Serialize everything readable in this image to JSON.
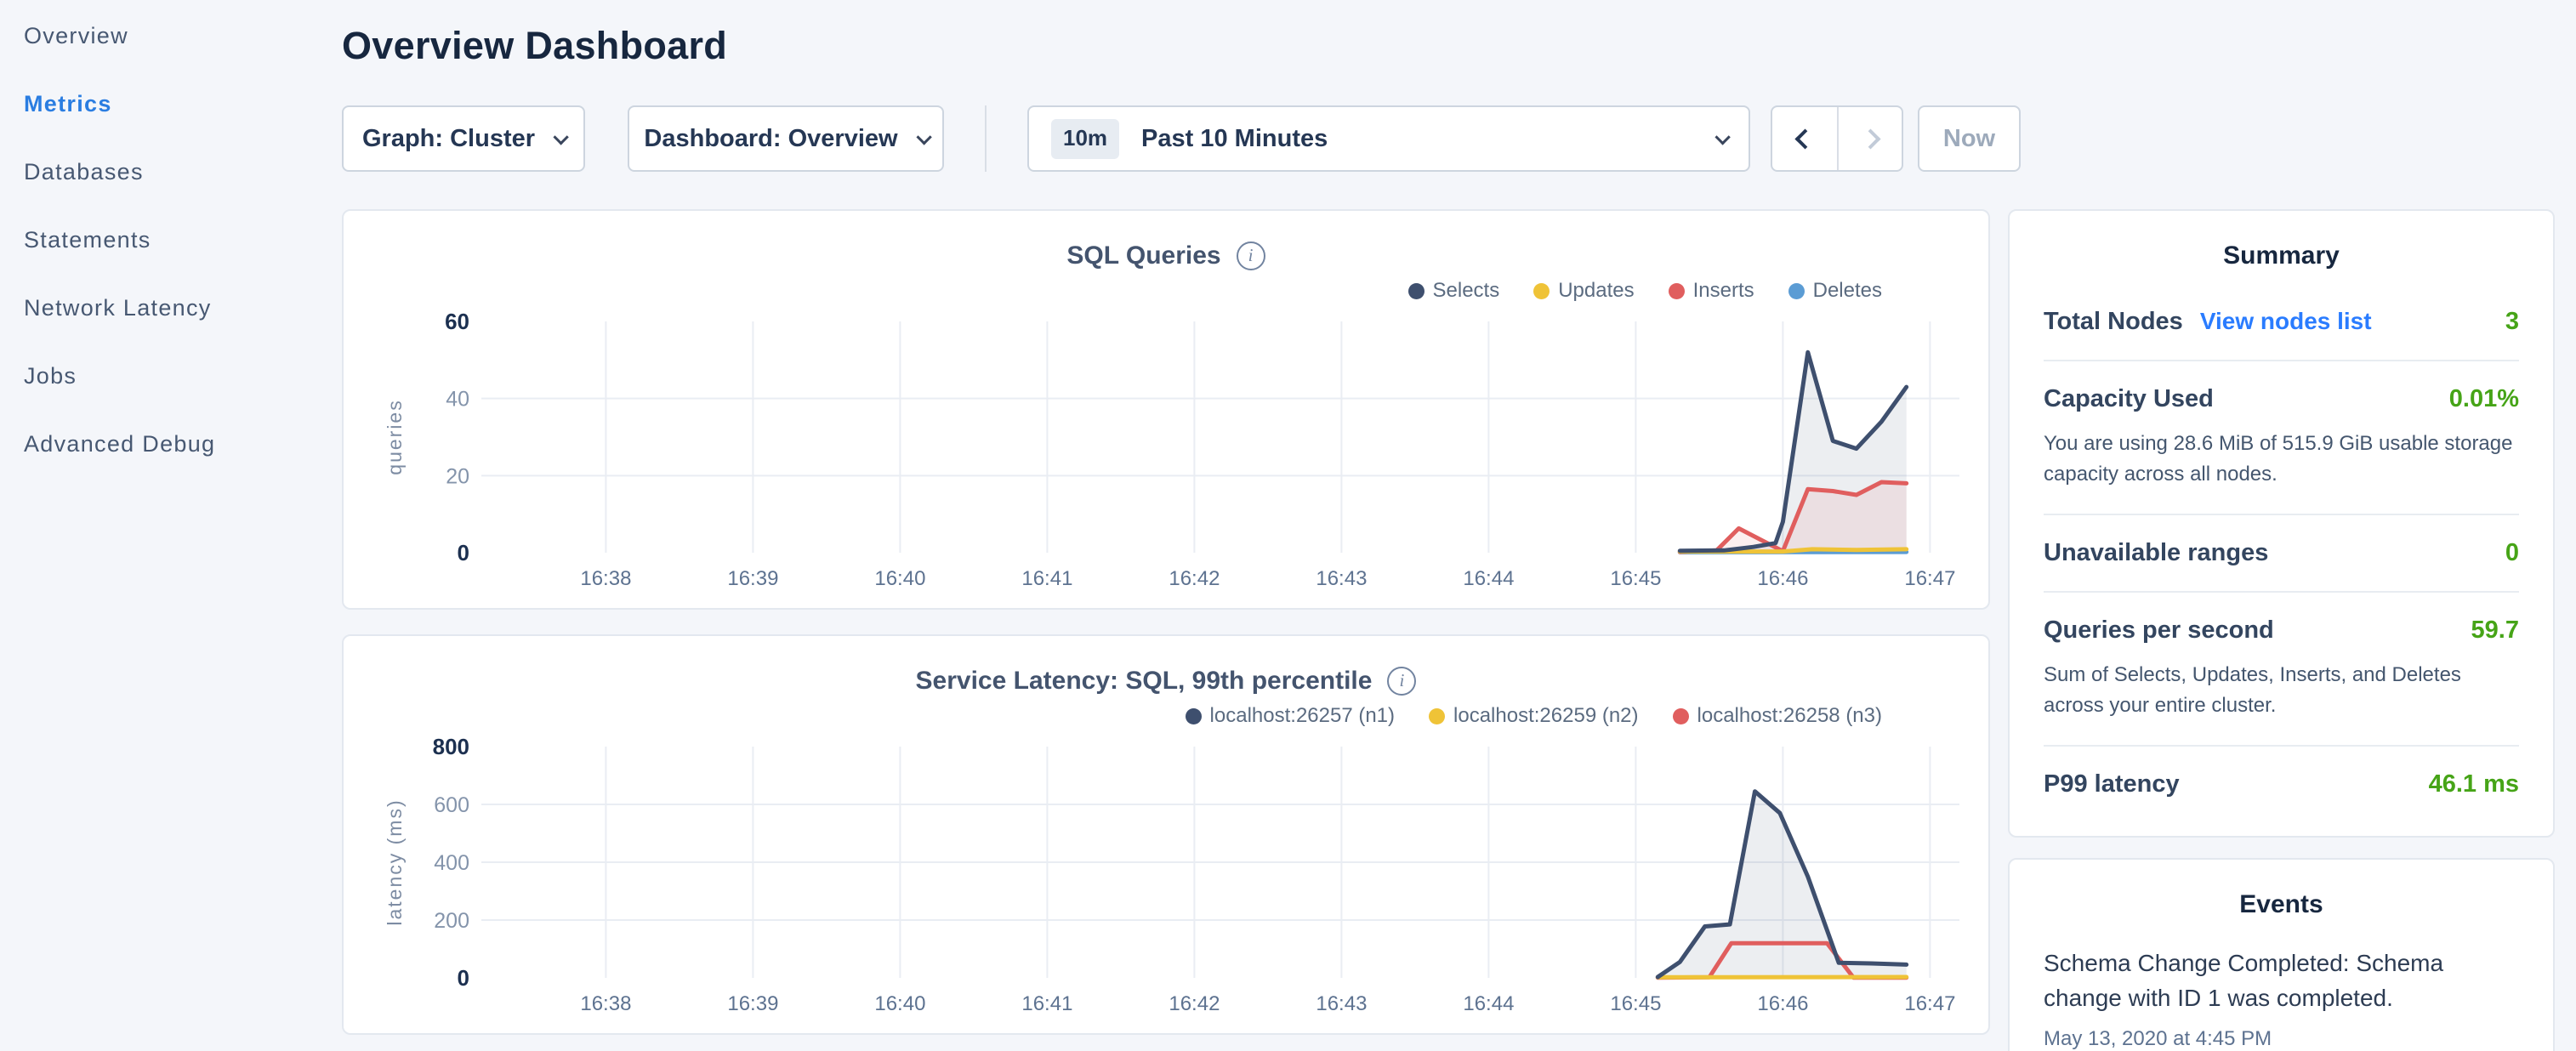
{
  "sidebar": {
    "items": [
      {
        "label": "Overview",
        "active": false
      },
      {
        "label": "Metrics",
        "active": true
      },
      {
        "label": "Databases",
        "active": false
      },
      {
        "label": "Statements",
        "active": false
      },
      {
        "label": "Network Latency",
        "active": false
      },
      {
        "label": "Jobs",
        "active": false
      },
      {
        "label": "Advanced Debug",
        "active": false
      }
    ]
  },
  "header": {
    "title": "Overview Dashboard"
  },
  "toolbar": {
    "graph_label": "Graph: Cluster",
    "dashboard_label": "Dashboard: Overview",
    "time_badge": "10m",
    "time_range": "Past 10 Minutes",
    "now_label": "Now"
  },
  "colors": {
    "accent_blue": "#2a7de1",
    "link_blue": "#2a7cff",
    "green": "#46a417",
    "navy_series": "#3e4f6e",
    "yellow_series": "#efc337",
    "red_series": "#e05e5e",
    "blue_series": "#5b9cd4"
  },
  "chart_data": [
    {
      "type": "area",
      "title": "SQL Queries",
      "ylabel": "queries",
      "y_ticks": [
        0,
        20,
        40,
        60
      ],
      "ylim": [
        0,
        60
      ],
      "x_ticks": [
        "16:38",
        "16:39",
        "16:40",
        "16:41",
        "16:42",
        "16:43",
        "16:44",
        "16:45",
        "16:46",
        "16:47"
      ],
      "x_domain_minutes": [
        37.2,
        47.2
      ],
      "legend_position": "top-right",
      "grid": "interior",
      "series": [
        {
          "name": "Selects",
          "color": "#3e4f6e",
          "fill": "rgba(71,88,114,0.10)",
          "points": [
            [
              45.3,
              0.5
            ],
            [
              45.6,
              0.6
            ],
            [
              45.8,
              1.5
            ],
            [
              45.95,
              2.5
            ],
            [
              46.0,
              8
            ],
            [
              46.17,
              52
            ],
            [
              46.34,
              29
            ],
            [
              46.5,
              27
            ],
            [
              46.67,
              34
            ],
            [
              46.84,
              43
            ]
          ]
        },
        {
          "name": "Updates",
          "color": "#efc337",
          "points": [
            [
              45.3,
              0.3
            ],
            [
              46.0,
              0.3
            ],
            [
              46.2,
              0.9
            ],
            [
              46.5,
              0.7
            ],
            [
              46.84,
              0.9
            ]
          ]
        },
        {
          "name": "Inserts",
          "color": "#e05e5e",
          "fill": "rgba(224,94,94,0.10)",
          "points": [
            [
              45.3,
              0.2
            ],
            [
              45.55,
              0.6
            ],
            [
              45.7,
              6.3
            ],
            [
              46.0,
              0.4
            ],
            [
              46.17,
              16.5
            ],
            [
              46.34,
              16
            ],
            [
              46.5,
              15
            ],
            [
              46.67,
              18.3
            ],
            [
              46.84,
              18
            ]
          ]
        },
        {
          "name": "Deletes",
          "color": "#5b9cd4",
          "points": [
            [
              45.3,
              0.1
            ],
            [
              46.84,
              0.2
            ]
          ]
        }
      ]
    },
    {
      "type": "area",
      "title": "Service Latency: SQL, 99th percentile",
      "ylabel": "latency (ms)",
      "y_ticks": [
        0,
        200,
        400,
        600,
        800
      ],
      "ylim": [
        0,
        800
      ],
      "x_ticks": [
        "16:38",
        "16:39",
        "16:40",
        "16:41",
        "16:42",
        "16:43",
        "16:44",
        "16:45",
        "16:46",
        "16:47"
      ],
      "x_domain_minutes": [
        37.2,
        47.2
      ],
      "legend_position": "top-right",
      "grid": "interior",
      "series": [
        {
          "name": "localhost:26257 (n1)",
          "color": "#3e4f6e",
          "fill": "rgba(71,88,114,0.10)",
          "points": [
            [
              45.15,
              3
            ],
            [
              45.3,
              55
            ],
            [
              45.47,
              178
            ],
            [
              45.64,
              185
            ],
            [
              45.81,
              645
            ],
            [
              45.98,
              570
            ],
            [
              46.17,
              350
            ],
            [
              46.38,
              52
            ],
            [
              46.6,
              50
            ],
            [
              46.84,
              46
            ]
          ]
        },
        {
          "name": "localhost:26259 (n2)",
          "color": "#efc337",
          "points": [
            [
              45.15,
              2
            ],
            [
              46.84,
              3
            ]
          ]
        },
        {
          "name": "localhost:26258 (n3)",
          "color": "#e05e5e",
          "points": [
            [
              45.15,
              1
            ],
            [
              45.5,
              2
            ],
            [
              45.65,
              120
            ],
            [
              46.3,
              120
            ],
            [
              46.48,
              1
            ],
            [
              46.84,
              1
            ]
          ]
        }
      ]
    }
  ],
  "summary": {
    "title": "Summary",
    "rows": [
      {
        "label": "Total Nodes",
        "link": "View nodes list",
        "value": "3"
      },
      {
        "label": "Capacity Used",
        "value": "0.01%",
        "description": "You are using 28.6 MiB of 515.9 GiB usable storage capacity across all nodes."
      },
      {
        "label": "Unavailable ranges",
        "value": "0"
      },
      {
        "label": "Queries per second",
        "value": "59.7",
        "description": "Sum of Selects, Updates, Inserts, and Deletes across your entire cluster."
      },
      {
        "label": "P99 latency",
        "value": "46.1 ms"
      }
    ]
  },
  "events": {
    "title": "Events",
    "items": [
      {
        "text": "Schema Change Completed: Schema change with ID 1 was completed.",
        "timestamp": "May 13, 2020 at 4:45 PM"
      }
    ]
  }
}
